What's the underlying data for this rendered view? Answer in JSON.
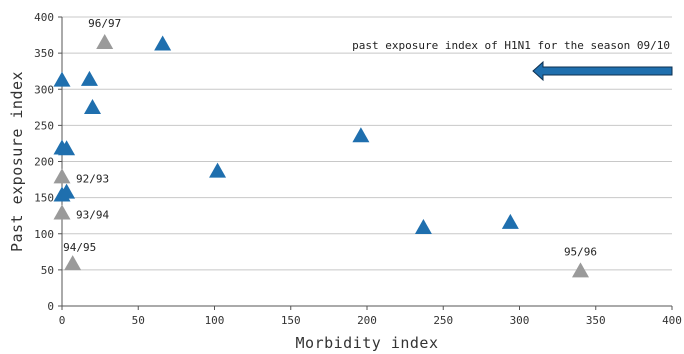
{
  "chart_data": {
    "type": "scatter",
    "xlabel": "Morbidity index",
    "ylabel": "Past exposure index",
    "xlim": [
      0,
      400
    ],
    "ylim": [
      0,
      400
    ],
    "xticks": [
      0,
      50,
      100,
      150,
      200,
      250,
      300,
      350,
      400
    ],
    "yticks": [
      0,
      50,
      100,
      150,
      200,
      250,
      300,
      350,
      400
    ],
    "grid": true,
    "colors": {
      "blue": "#1f6fae",
      "gray": "#9a9a9a",
      "arrow": "#1f6fae",
      "arrow_outline": "#0d2f4f"
    },
    "series": [
      {
        "color": "blue",
        "points": [
          {
            "x": 66,
            "y": 362
          },
          {
            "x": 0,
            "y": 312
          },
          {
            "x": 18,
            "y": 313
          },
          {
            "x": 20,
            "y": 274
          },
          {
            "x": 0,
            "y": 218
          },
          {
            "x": 3,
            "y": 217
          },
          {
            "x": 102,
            "y": 186
          },
          {
            "x": 196,
            "y": 235
          },
          {
            "x": 3,
            "y": 157
          },
          {
            "x": 0,
            "y": 153
          },
          {
            "x": 237,
            "y": 108
          },
          {
            "x": 294,
            "y": 115
          }
        ]
      },
      {
        "color": "gray",
        "points": [
          {
            "x": 28,
            "y": 364,
            "label": "96/97"
          },
          {
            "x": 0,
            "y": 178,
            "label": "92/93"
          },
          {
            "x": 0,
            "y": 128,
            "label": "93/94"
          },
          {
            "x": 7,
            "y": 58,
            "label": "94/95"
          },
          {
            "x": 340,
            "y": 48,
            "label": "95/96"
          }
        ]
      }
    ],
    "annotation": {
      "text": "past exposure index of H1N1  for the season 09/10",
      "arrow_direction": "left"
    }
  }
}
